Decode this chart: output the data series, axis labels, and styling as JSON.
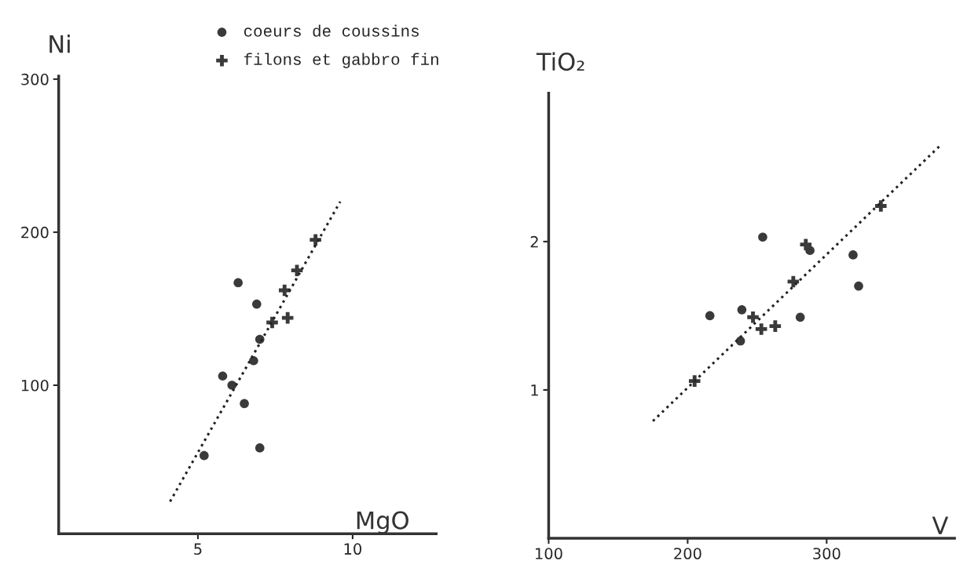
{
  "chart_data": [
    {
      "type": "scatter",
      "xlabel": "MgO",
      "ylabel": "Ni",
      "xlim": [
        0.5,
        12.7
      ],
      "ylim": [
        3,
        302
      ],
      "xticks": [
        5,
        10
      ],
      "yticks": [
        100,
        200,
        300
      ],
      "grid": false,
      "legend": "top",
      "series": [
        {
          "name": "coeurs de coussins",
          "color": "#3a3a3a",
          "marker": "circle",
          "x": [
            6.3,
            6.9,
            7.0,
            6.8,
            5.8,
            6.1,
            6.5,
            7.0,
            5.2
          ],
          "values": [
            167,
            153,
            130,
            116,
            106,
            100,
            88,
            59,
            54
          ]
        },
        {
          "name": "filons et gabbro fin",
          "color": "#3a3a3a",
          "marker": "cross",
          "x": [
            8.8,
            8.2,
            7.8,
            7.9,
            7.4
          ],
          "values": [
            195,
            175,
            162,
            144,
            141
          ]
        },
        {
          "type": "line",
          "color": "#222222",
          "line_style": "dotted",
          "marker": "none",
          "x": [
            4.1,
            9.6
          ],
          "values": [
            24,
            220
          ]
        }
      ]
    },
    {
      "type": "scatter",
      "xlabel": "V",
      "ylabel": "TiO₂",
      "xlim": [
        100,
        392
      ],
      "ylim": [
        0,
        3
      ],
      "xticks": [
        100,
        200,
        300
      ],
      "yticks": [
        1,
        2
      ],
      "grid": false,
      "series": [
        {
          "color": "#3a3a3a",
          "marker": "circle",
          "x": [
            254,
            288,
            319,
            323,
            216,
            239,
            281,
            238
          ],
          "values": [
            2.03,
            1.94,
            1.91,
            1.7,
            1.5,
            1.54,
            1.49,
            1.33
          ]
        },
        {
          "color": "#3a3a3a",
          "marker": "cross",
          "x": [
            339,
            285,
            276,
            247,
            253,
            263,
            205
          ],
          "values": [
            2.24,
            1.98,
            1.73,
            1.49,
            1.41,
            1.43,
            1.06
          ]
        },
        {
          "type": "line",
          "color": "#222222",
          "line_style": "dotted",
          "marker": "none",
          "x": [
            175,
            382
          ],
          "values": [
            0.79,
            2.65
          ]
        }
      ]
    }
  ]
}
